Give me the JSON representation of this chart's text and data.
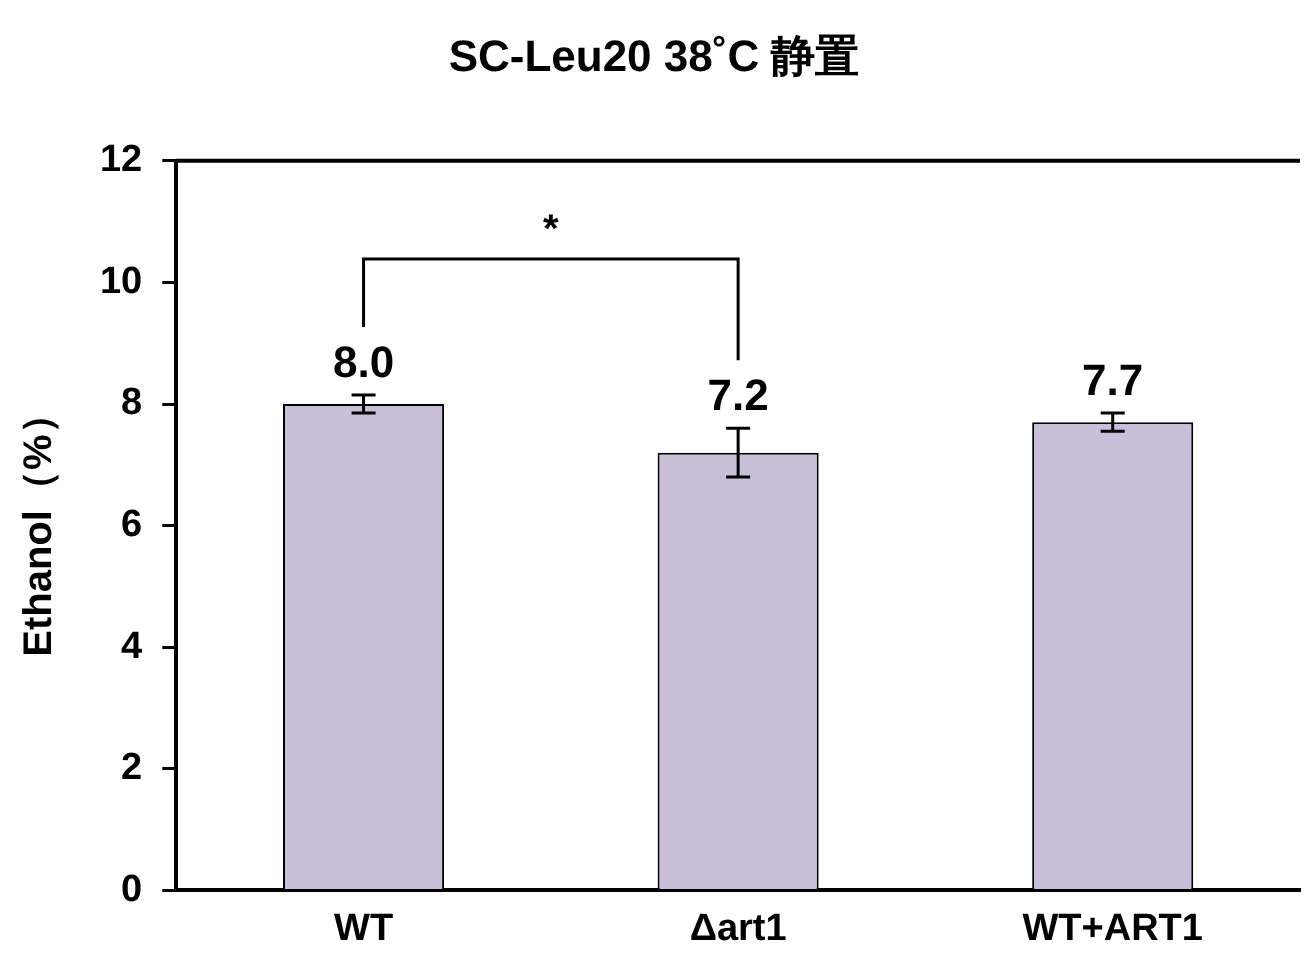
{
  "chart_data": {
    "type": "bar",
    "title": "SC-Leu20 38˚C 静置",
    "ylabel": "Ethanol（%）",
    "categories": [
      "WT",
      "Δart1",
      "WT+ART1"
    ],
    "values": [
      8.0,
      7.2,
      7.7
    ],
    "errors": [
      0.15,
      0.4,
      0.15
    ],
    "color": "#c9bfdb",
    "ylim": [
      0,
      12
    ],
    "yticks": [
      0,
      2,
      4,
      6,
      8,
      10,
      12
    ],
    "value_labels": [
      "8.0",
      "7.2",
      "7.7"
    ],
    "annotations": [
      "*"
    ],
    "grid": false,
    "legend": false
  }
}
